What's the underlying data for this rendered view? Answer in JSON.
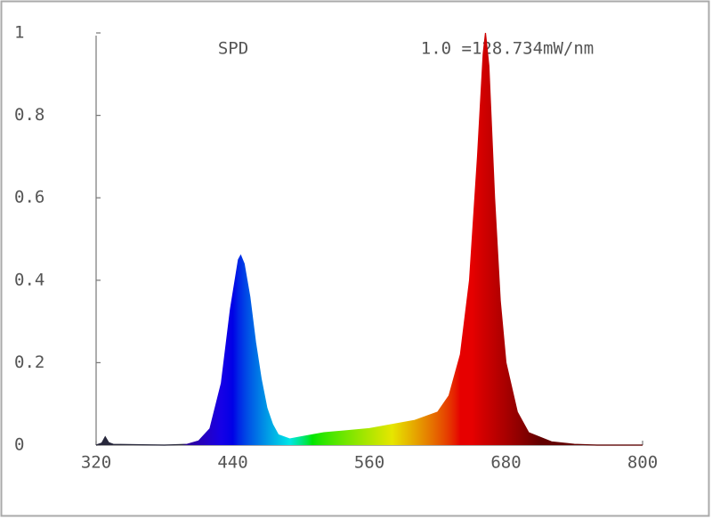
{
  "chart_data": {
    "type": "area",
    "title": "SPD",
    "annotation": "1.0 =128.734mW/nm",
    "x": [
      320,
      325,
      328,
      331,
      335,
      380,
      400,
      410,
      420,
      430,
      438,
      445,
      447,
      450,
      455,
      460,
      465,
      470,
      475,
      480,
      490,
      500,
      520,
      540,
      560,
      580,
      600,
      610,
      620,
      630,
      640,
      648,
      655,
      660,
      662,
      665,
      670,
      675,
      680,
      690,
      700,
      720,
      740,
      760,
      800
    ],
    "values": [
      0,
      0.005,
      0.02,
      0.006,
      0.002,
      0,
      0.002,
      0.01,
      0.04,
      0.15,
      0.33,
      0.45,
      0.46,
      0.44,
      0.36,
      0.25,
      0.16,
      0.09,
      0.05,
      0.025,
      0.015,
      0.02,
      0.03,
      0.035,
      0.04,
      0.05,
      0.06,
      0.07,
      0.08,
      0.12,
      0.22,
      0.4,
      0.7,
      0.95,
      1.0,
      0.92,
      0.6,
      0.35,
      0.2,
      0.08,
      0.03,
      0.008,
      0.002,
      0,
      0
    ],
    "xlim": [
      320,
      800
    ],
    "ylim": [
      0,
      1
    ],
    "xticks": [
      320,
      440,
      560,
      680,
      800
    ],
    "yticks": [
      0,
      0.2,
      0.4,
      0.6,
      0.8,
      1
    ],
    "grid": false
  }
}
